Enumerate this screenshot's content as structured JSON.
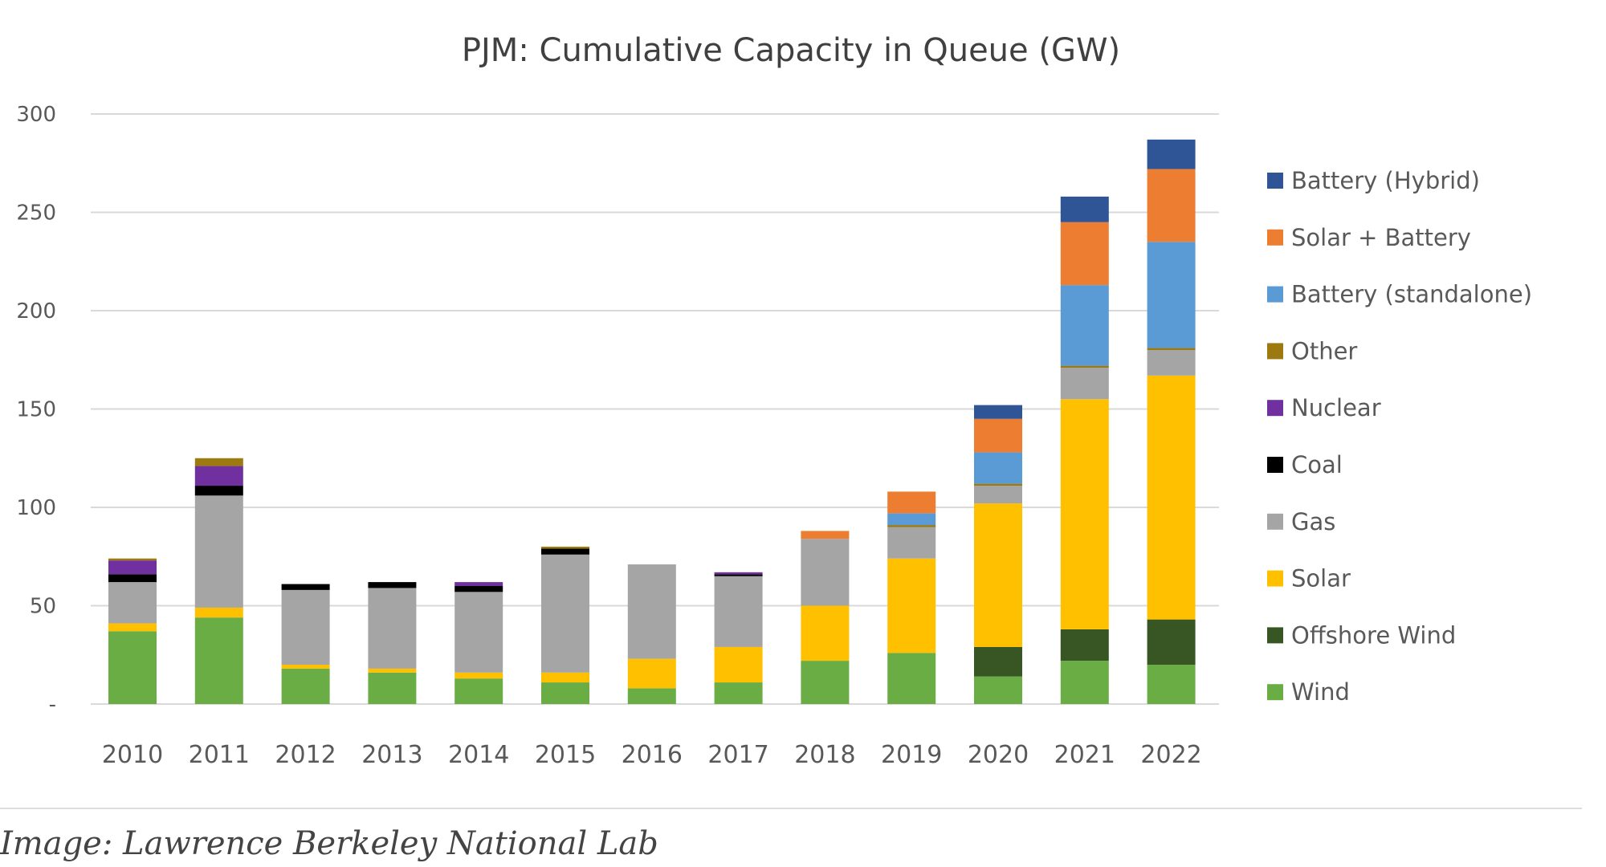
{
  "chart_data": {
    "type": "bar",
    "stacked": true,
    "title": "PJM: Cumulative Capacity in Queue (GW)",
    "xlabel": "",
    "ylabel": "",
    "ylim": [
      0,
      300
    ],
    "yticks": [
      0,
      50,
      100,
      150,
      200,
      250,
      300
    ],
    "ytick_labels": [
      "-",
      "50",
      "100",
      "150",
      "200",
      "250",
      "300"
    ],
    "grid": true,
    "legend_position": "right",
    "categories": [
      "2010",
      "2011",
      "2012",
      "2013",
      "2014",
      "2015",
      "2016",
      "2017",
      "2018",
      "2019",
      "2020",
      "2021",
      "2022"
    ],
    "series": [
      {
        "name": "Wind",
        "color": "#6aad45",
        "values": [
          37,
          44,
          18,
          16,
          13,
          11,
          8,
          11,
          22,
          26,
          14,
          22,
          20
        ]
      },
      {
        "name": "Offshore Wind",
        "color": "#375623",
        "values": [
          0,
          0,
          0,
          0,
          0,
          0,
          0,
          0,
          0,
          0,
          15,
          16,
          23
        ]
      },
      {
        "name": "Solar",
        "color": "#ffc000",
        "values": [
          4,
          5,
          2,
          2,
          3,
          5,
          15,
          18,
          28,
          48,
          73,
          117,
          124
        ]
      },
      {
        "name": "Gas",
        "color": "#a5a5a5",
        "values": [
          21,
          57,
          38,
          41,
          41,
          60,
          48,
          36,
          34,
          16,
          9,
          16,
          13
        ]
      },
      {
        "name": "Coal",
        "color": "#000000",
        "values": [
          4,
          5,
          3,
          3,
          3,
          3,
          0,
          1,
          0,
          0,
          0,
          0,
          0
        ]
      },
      {
        "name": "Nuclear",
        "color": "#7030a0",
        "values": [
          7,
          10,
          0,
          0,
          2,
          0,
          0,
          1,
          0,
          0,
          0,
          0,
          0
        ]
      },
      {
        "name": "Other",
        "color": "#9c7a10",
        "values": [
          1,
          4,
          0,
          0,
          0,
          1,
          0,
          0,
          0,
          1,
          1,
          1,
          1
        ]
      },
      {
        "name": "Battery (standalone)",
        "color": "#5b9bd5",
        "values": [
          0,
          0,
          0,
          0,
          0,
          0,
          0,
          0,
          0,
          6,
          16,
          41,
          54
        ]
      },
      {
        "name": "Solar + Battery",
        "color": "#ed7d31",
        "values": [
          0,
          0,
          0,
          0,
          0,
          0,
          0,
          0,
          4,
          11,
          17,
          32,
          37
        ]
      },
      {
        "name": "Battery (Hybrid)",
        "color": "#2f5597",
        "values": [
          0,
          0,
          0,
          0,
          0,
          0,
          0,
          0,
          0,
          0,
          7,
          13,
          15
        ]
      }
    ],
    "legend_order": [
      "Battery (Hybrid)",
      "Solar + Battery",
      "Battery (standalone)",
      "Other",
      "Nuclear",
      "Coal",
      "Gas",
      "Solar",
      "Offshore Wind",
      "Wind"
    ]
  },
  "caption": "Image: Lawrence Berkeley National Lab"
}
